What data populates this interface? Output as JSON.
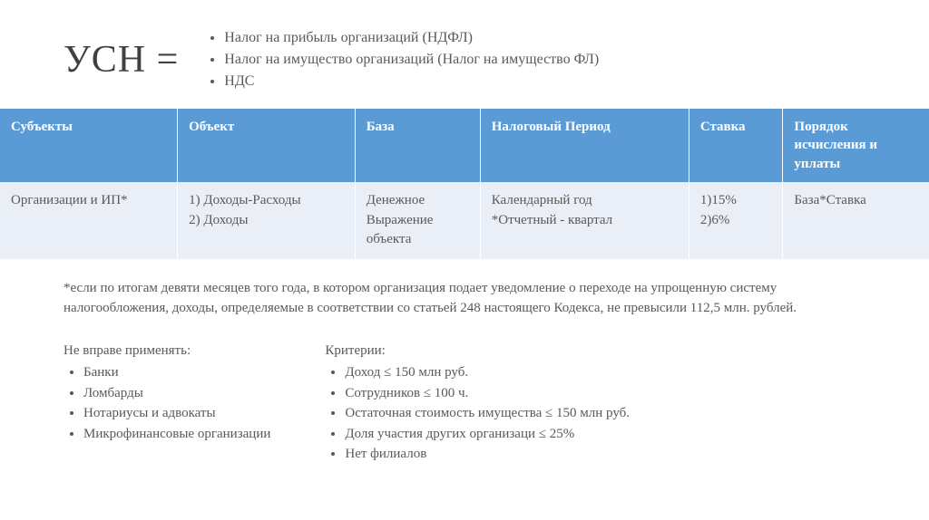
{
  "header": {
    "title": "УСН =",
    "replaces": [
      "Налог на прибыль организаций (НДФЛ)",
      "Налог на имущество организаций (Налог на имущество ФЛ)",
      "НДС"
    ]
  },
  "table": {
    "columns": [
      "Субъекты",
      "Объект",
      "База",
      "Налоговый Период",
      "Ставка",
      "Порядок исчисления и уплаты"
    ],
    "row": [
      "Организации и ИП*",
      "1) Доходы-Расходы\n2) Доходы",
      "Денежное Выражение объекта",
      "Календарный год\n*Отчетный - квартал",
      "1)15%\n2)6%",
      "База*Ставка"
    ],
    "col_widths": [
      "170px",
      "170px",
      "120px",
      "200px",
      "90px",
      "140px"
    ],
    "header_bg": "#5b9bd5",
    "header_color": "#ffffff",
    "row_bg": "#eaeff7",
    "text_color": "#595959"
  },
  "footnote": "*если по итогам девяти месяцев того года, в котором организация подает уведомление о переходе на упрощенную систему налогообложения, доходы, определяемые в соответствии со статьей 248 настоящего Кодекса, не превысили 112,5 млн. рублей.",
  "left_block": {
    "title": "Не вправе применять:",
    "items": [
      "Банки",
      "Ломбарды",
      "Нотариусы и адвокаты",
      "Микрофинансовые организации"
    ]
  },
  "right_block": {
    "title": "Критерии:",
    "items": [
      "Доход ≤ 150 млн руб.",
      "Сотрудников ≤ 100 ч.",
      "Остаточная стоимость имущества ≤ 150 млн руб.",
      "Доля участия других организаци ≤ 25%",
      "Нет филиалов"
    ]
  },
  "style": {
    "background": "#ffffff",
    "font_family": "Georgia, Times New Roman, serif",
    "title_fontsize": 42,
    "body_fontsize": 15,
    "list_fontsize": 16
  }
}
